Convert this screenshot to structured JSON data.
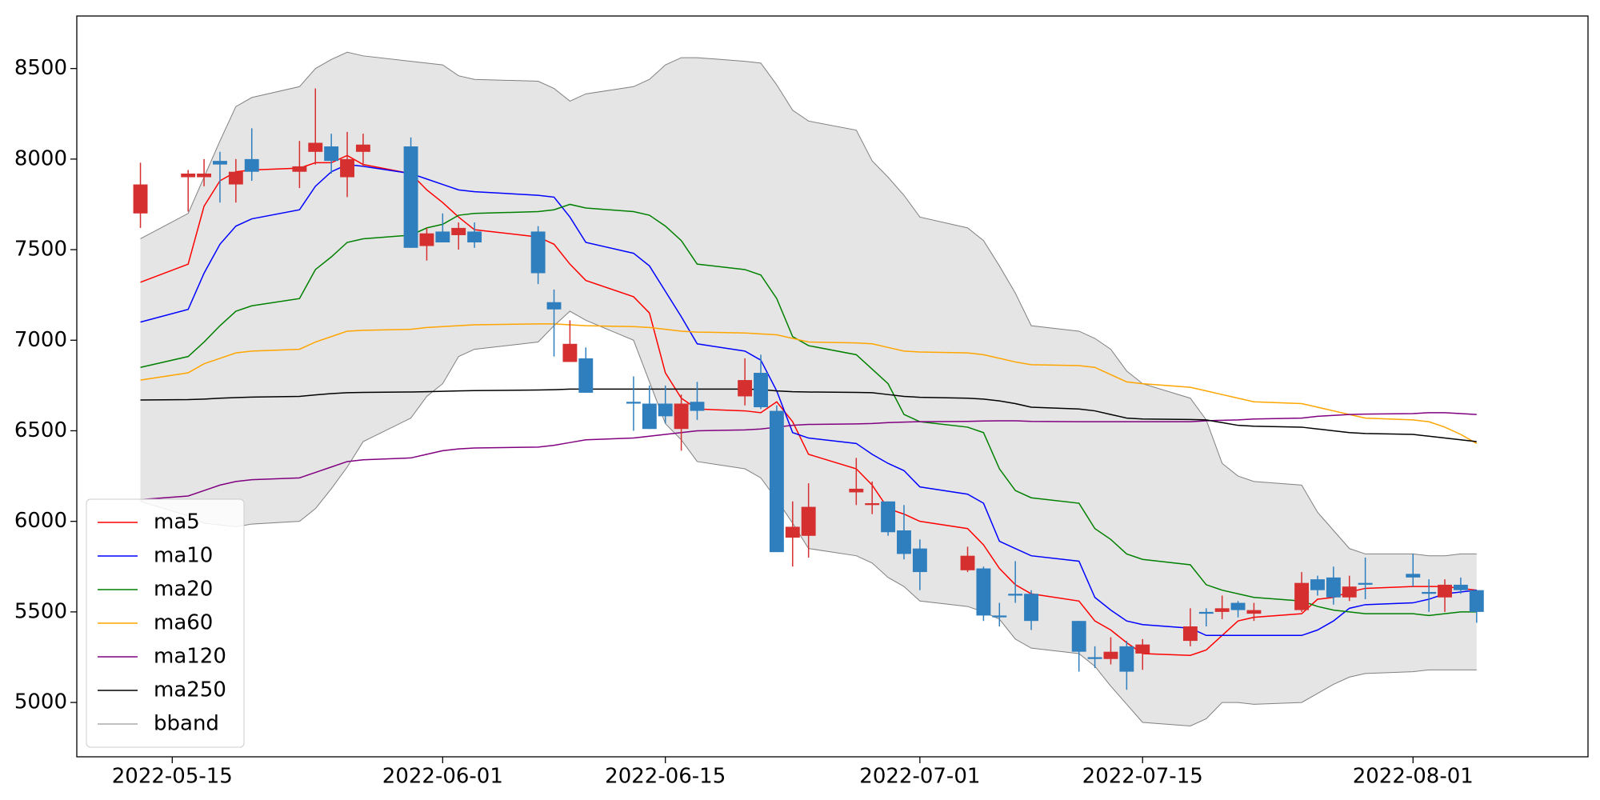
{
  "chart_data": {
    "type": "candlestick",
    "x": [
      "2022-05-13",
      "2022-05-16",
      "2022-05-17",
      "2022-05-18",
      "2022-05-19",
      "2022-05-20",
      "2022-05-23",
      "2022-05-24",
      "2022-05-25",
      "2022-05-26",
      "2022-05-27",
      "2022-05-30",
      "2022-05-31",
      "2022-06-01",
      "2022-06-02",
      "2022-06-03",
      "2022-06-07",
      "2022-06-08",
      "2022-06-09",
      "2022-06-10",
      "2022-06-13",
      "2022-06-14",
      "2022-06-15",
      "2022-06-16",
      "2022-06-17",
      "2022-06-20",
      "2022-06-21",
      "2022-06-22",
      "2022-06-23",
      "2022-06-24",
      "2022-06-27",
      "2022-06-28",
      "2022-06-29",
      "2022-06-30",
      "2022-07-01",
      "2022-07-04",
      "2022-07-05",
      "2022-07-06",
      "2022-07-07",
      "2022-07-08",
      "2022-07-11",
      "2022-07-12",
      "2022-07-13",
      "2022-07-14",
      "2022-07-15",
      "2022-07-18",
      "2022-07-19",
      "2022-07-20",
      "2022-07-21",
      "2022-07-22",
      "2022-07-25",
      "2022-07-26",
      "2022-07-27",
      "2022-07-28",
      "2022-07-29",
      "2022-08-01",
      "2022-08-02",
      "2022-08-03",
      "2022-08-04",
      "2022-08-05"
    ],
    "open": [
      7700,
      7900,
      7900,
      7990,
      7860,
      8000,
      7930,
      8040,
      8070,
      7900,
      8040,
      8070,
      7520,
      7600,
      7580,
      7600,
      7600,
      7210,
      6880,
      6900,
      6660,
      6650,
      6650,
      6510,
      6660,
      6690,
      6820,
      6610,
      5910,
      5920,
      6160,
      6090,
      6110,
      5950,
      5850,
      5730,
      5740,
      5480,
      5600,
      5600,
      5450,
      5250,
      5240,
      5310,
      5270,
      5340,
      5500,
      5500,
      5550,
      5490,
      5510,
      5680,
      5690,
      5580,
      5660,
      5710,
      5610,
      5580,
      5650,
      5620
    ],
    "high": [
      7980,
      7940,
      8000,
      8040,
      8000,
      8170,
      8100,
      8390,
      8140,
      8150,
      8140,
      8120,
      7620,
      7700,
      7650,
      7650,
      7630,
      7280,
      7110,
      6960,
      6800,
      6750,
      6750,
      6700,
      6770,
      6900,
      6920,
      6640,
      6110,
      6210,
      6350,
      6220,
      6110,
      6090,
      5900,
      5860,
      5750,
      5550,
      5780,
      5620,
      5450,
      5310,
      5360,
      5340,
      5350,
      5520,
      5520,
      5590,
      5560,
      5550,
      5720,
      5700,
      5750,
      5700,
      5800,
      5820,
      5680,
      5680,
      5690,
      5620
    ],
    "low": [
      7620,
      7710,
      7850,
      7760,
      7760,
      7880,
      7840,
      7970,
      7920,
      7790,
      7960,
      7510,
      7440,
      7540,
      7500,
      7510,
      7310,
      6910,
      6880,
      6710,
      6500,
      6510,
      6540,
      6390,
      6560,
      6640,
      6620,
      5830,
      5750,
      5800,
      6090,
      6040,
      5920,
      5790,
      5620,
      5720,
      5450,
      5420,
      5550,
      5400,
      5170,
      5190,
      5210,
      5070,
      5180,
      5310,
      5420,
      5460,
      5470,
      5450,
      5500,
      5590,
      5540,
      5560,
      5570,
      5640,
      5500,
      5500,
      5600,
      5440
    ],
    "close": [
      7860,
      7920,
      7920,
      7970,
      7930,
      7930,
      7960,
      8090,
      7990,
      8000,
      8080,
      7510,
      7590,
      7540,
      7620,
      7540,
      7370,
      7170,
      6980,
      6710,
      6650,
      6510,
      6580,
      6650,
      6610,
      6780,
      6630,
      5830,
      5970,
      6080,
      6180,
      6100,
      5940,
      5820,
      5720,
      5810,
      5480,
      5470,
      5590,
      5450,
      5280,
      5240,
      5280,
      5170,
      5320,
      5420,
      5490,
      5520,
      5510,
      5510,
      5660,
      5620,
      5580,
      5640,
      5650,
      5690,
      5600,
      5650,
      5620,
      5500
    ],
    "up_color": "#d62f2f",
    "down_color": "#2f7fbf",
    "series": [
      {
        "name": "ma5",
        "color": "#ff0000",
        "values": [
          7320,
          7420,
          7740,
          7880,
          7930,
          7940,
          7950,
          7980,
          7980,
          8020,
          7970,
          7920,
          7830,
          7760,
          7680,
          7610,
          7570,
          7530,
          7420,
          7330,
          7240,
          7150,
          6820,
          6680,
          6620,
          6610,
          6600,
          6660,
          6550,
          6370,
          6290,
          6200,
          6070,
          6040,
          6000,
          5960,
          5870,
          5740,
          5650,
          5600,
          5560,
          5450,
          5400,
          5330,
          5270,
          5260,
          5290,
          5370,
          5450,
          5470,
          5490,
          5570,
          5580,
          5610,
          5630,
          5640,
          5640,
          5640,
          5630,
          5620
        ]
      },
      {
        "name": "ma10",
        "color": "#0000ff",
        "values": [
          7100,
          7170,
          7370,
          7530,
          7630,
          7670,
          7720,
          7850,
          7930,
          7970,
          7960,
          7920,
          7890,
          7860,
          7830,
          7820,
          7800,
          7790,
          7680,
          7540,
          7480,
          7410,
          7270,
          7130,
          6980,
          6940,
          6890,
          6720,
          6490,
          6460,
          6430,
          6370,
          6320,
          6280,
          6190,
          6150,
          6100,
          5890,
          5850,
          5810,
          5780,
          5580,
          5510,
          5450,
          5430,
          5410,
          5370,
          5370,
          5370,
          5370,
          5370,
          5400,
          5450,
          5520,
          5540,
          5550,
          5570,
          5600,
          5610,
          5620
        ]
      },
      {
        "name": "ma20",
        "color": "#008000",
        "values": [
          6850,
          6910,
          6990,
          7080,
          7160,
          7190,
          7230,
          7390,
          7460,
          7540,
          7560,
          7580,
          7620,
          7640,
          7690,
          7700,
          7710,
          7720,
          7750,
          7730,
          7710,
          7690,
          7630,
          7550,
          7420,
          7390,
          7360,
          7230,
          7020,
          6970,
          6920,
          6840,
          6760,
          6590,
          6550,
          6520,
          6490,
          6290,
          6170,
          6130,
          6100,
          5960,
          5900,
          5820,
          5790,
          5760,
          5650,
          5620,
          5600,
          5580,
          5560,
          5530,
          5510,
          5500,
          5490,
          5490,
          5480,
          5490,
          5500,
          5500
        ]
      },
      {
        "name": "ma60",
        "color": "#ffa500",
        "values": [
          6780,
          6820,
          6870,
          6900,
          6930,
          6940,
          6950,
          6990,
          7020,
          7050,
          7055,
          7060,
          7070,
          7075,
          7080,
          7085,
          7090,
          7090,
          7085,
          7080,
          7075,
          7070,
          7060,
          7050,
          7045,
          7040,
          7035,
          7030,
          7010,
          6990,
          6985,
          6980,
          6960,
          6940,
          6935,
          6930,
          6920,
          6900,
          6880,
          6865,
          6860,
          6850,
          6810,
          6770,
          6760,
          6740,
          6720,
          6700,
          6680,
          6660,
          6650,
          6630,
          6610,
          6590,
          6570,
          6560,
          6550,
          6520,
          6480,
          6430
        ]
      },
      {
        "name": "ma120",
        "color": "#800080",
        "values": [
          6120,
          6140,
          6170,
          6200,
          6220,
          6230,
          6240,
          6270,
          6300,
          6330,
          6340,
          6350,
          6370,
          6390,
          6400,
          6405,
          6410,
          6420,
          6435,
          6450,
          6460,
          6470,
          6480,
          6490,
          6500,
          6505,
          6510,
          6520,
          6530,
          6535,
          6538,
          6540,
          6545,
          6548,
          6550,
          6552,
          6554,
          6555,
          6555,
          6552,
          6550,
          6550,
          6550,
          6550,
          6550,
          6550,
          6555,
          6558,
          6560,
          6565,
          6570,
          6580,
          6585,
          6590,
          6592,
          6595,
          6600,
          6600,
          6595,
          6590
        ]
      },
      {
        "name": "ma250",
        "color": "#000000",
        "values": [
          6670,
          6672,
          6675,
          6680,
          6683,
          6686,
          6690,
          6698,
          6705,
          6710,
          6712,
          6714,
          6716,
          6718,
          6720,
          6722,
          6725,
          6727,
          6730,
          6730,
          6730,
          6730,
          6730,
          6730,
          6730,
          6730,
          6728,
          6720,
          6716,
          6714,
          6712,
          6710,
          6700,
          6690,
          6685,
          6680,
          6675,
          6665,
          6650,
          6630,
          6620,
          6610,
          6590,
          6570,
          6565,
          6562,
          6560,
          6545,
          6530,
          6525,
          6520,
          6510,
          6500,
          6490,
          6485,
          6480,
          6470,
          6460,
          6450,
          6440
        ]
      }
    ],
    "band": {
      "name": "bband",
      "color": "#808080",
      "fill": "#e5e5e5",
      "upper": [
        7560,
        7700,
        7900,
        8100,
        8290,
        8340,
        8400,
        8500,
        8550,
        8590,
        8570,
        8540,
        8530,
        8520,
        8460,
        8440,
        8430,
        8390,
        8320,
        8360,
        8400,
        8440,
        8520,
        8560,
        8560,
        8540,
        8530,
        8410,
        8270,
        8210,
        8160,
        7990,
        7900,
        7800,
        7680,
        7620,
        7550,
        7410,
        7260,
        7080,
        7050,
        7010,
        6950,
        6830,
        6760,
        6680,
        6560,
        6320,
        6250,
        6220,
        6200,
        6050,
        5950,
        5850,
        5820,
        5820,
        5810,
        5810,
        5820,
        5820
      ],
      "lower": [
        6110,
        6030,
        5990,
        5980,
        5970,
        5985,
        6000,
        6070,
        6180,
        6300,
        6440,
        6570,
        6690,
        6760,
        6910,
        6950,
        6990,
        7080,
        7160,
        7110,
        7000,
        6770,
        6540,
        6450,
        6330,
        6290,
        6240,
        6120,
        5990,
        5850,
        5810,
        5770,
        5690,
        5640,
        5560,
        5530,
        5500,
        5460,
        5350,
        5300,
        5270,
        5200,
        5090,
        4990,
        4890,
        4870,
        4910,
        5000,
        5000,
        4990,
        5000,
        5050,
        5100,
        5140,
        5160,
        5170,
        5180,
        5180,
        5180,
        5180
      ]
    },
    "xlim": [
      "2022-05-09",
      "2022-08-12"
    ],
    "xticks": [
      "2022-05-15",
      "2022-06-01",
      "2022-06-15",
      "2022-07-01",
      "2022-07-15",
      "2022-08-01"
    ],
    "ylim": [
      4700,
      8790
    ],
    "yticks": [
      5000,
      5500,
      6000,
      6500,
      7000,
      7500,
      8000,
      8500
    ],
    "legend": "lower left"
  }
}
